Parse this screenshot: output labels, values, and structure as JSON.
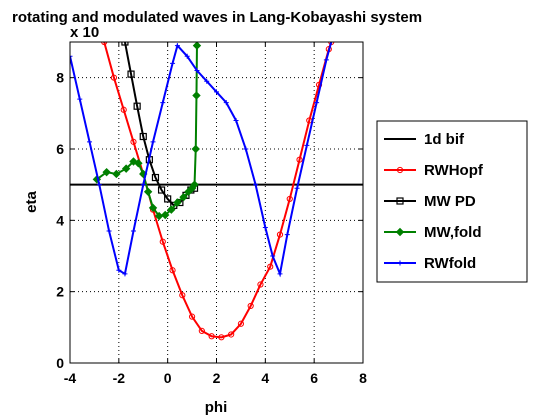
{
  "chart_data": {
    "type": "line",
    "title": "rotating and modulated waves in Lang-Kobayashi system",
    "exponent_label": "x 10",
    "xlabel": "phi",
    "ylabel": "eta",
    "xlim": [
      -4,
      8
    ],
    "ylim": [
      0,
      9
    ],
    "xticks": [
      -4,
      -2,
      0,
      2,
      4,
      6,
      8
    ],
    "yticks": [
      0,
      2,
      4,
      6,
      8
    ],
    "grid": true,
    "legend_position": "right-outside",
    "series": [
      {
        "name": "1d bif",
        "color": "#000000",
        "marker": "none",
        "points": [
          [
            -4,
            5.0
          ],
          [
            8,
            5.0
          ]
        ]
      },
      {
        "name": "RWHopf",
        "color": "#ff0000",
        "marker": "circle",
        "points": [
          [
            -2.6,
            9.0
          ],
          [
            -2.2,
            8.0
          ],
          [
            -1.8,
            7.1
          ],
          [
            -1.4,
            6.2
          ],
          [
            -1.0,
            5.3
          ],
          [
            -0.6,
            4.3
          ],
          [
            -0.2,
            3.4
          ],
          [
            0.2,
            2.6
          ],
          [
            0.6,
            1.9
          ],
          [
            1.0,
            1.3
          ],
          [
            1.4,
            0.9
          ],
          [
            1.8,
            0.75
          ],
          [
            2.2,
            0.72
          ],
          [
            2.6,
            0.8
          ],
          [
            3.0,
            1.1
          ],
          [
            3.4,
            1.6
          ],
          [
            3.8,
            2.2
          ],
          [
            4.2,
            2.7
          ],
          [
            4.6,
            3.6
          ],
          [
            5.0,
            4.6
          ],
          [
            5.4,
            5.7
          ],
          [
            5.8,
            6.8
          ],
          [
            6.2,
            7.8
          ],
          [
            6.6,
            8.8
          ],
          [
            6.7,
            9.0
          ]
        ]
      },
      {
        "name": "MW PD",
        "color": "#000000",
        "marker": "square",
        "points": [
          [
            -1.75,
            9.0
          ],
          [
            -1.5,
            8.1
          ],
          [
            -1.25,
            7.2
          ],
          [
            -1.0,
            6.35
          ],
          [
            -0.75,
            5.7
          ],
          [
            -0.5,
            5.2
          ],
          [
            -0.25,
            4.85
          ],
          [
            0.0,
            4.6
          ],
          [
            0.25,
            4.42
          ],
          [
            0.5,
            4.5
          ],
          [
            0.75,
            4.7
          ],
          [
            0.95,
            4.85
          ],
          [
            1.1,
            4.9
          ]
        ]
      },
      {
        "name": "MW,fold",
        "color": "#008000",
        "marker": "diamond",
        "points": [
          [
            -2.9,
            5.15
          ],
          [
            -2.5,
            5.35
          ],
          [
            -2.1,
            5.3
          ],
          [
            -1.7,
            5.45
          ],
          [
            -1.4,
            5.65
          ],
          [
            -1.2,
            5.6
          ],
          [
            -1.0,
            5.3
          ],
          [
            -0.8,
            4.8
          ],
          [
            -0.6,
            4.35
          ],
          [
            -0.35,
            4.12
          ],
          [
            -0.1,
            4.15
          ],
          [
            0.15,
            4.3
          ],
          [
            0.4,
            4.5
          ],
          [
            0.65,
            4.65
          ],
          [
            0.85,
            4.8
          ],
          [
            1.0,
            4.9
          ],
          [
            1.1,
            5.0
          ],
          [
            1.15,
            6.0
          ],
          [
            1.18,
            7.5
          ],
          [
            1.2,
            8.9
          ]
        ]
      },
      {
        "name": "RWfold",
        "color": "#0000ff",
        "marker": "plus",
        "points": [
          [
            -4.0,
            8.6
          ],
          [
            -3.6,
            7.4
          ],
          [
            -3.2,
            6.2
          ],
          [
            -2.8,
            5.0
          ],
          [
            -2.4,
            3.7
          ],
          [
            -2.0,
            2.6
          ],
          [
            -1.75,
            2.5
          ],
          [
            -1.4,
            3.7
          ],
          [
            -1.0,
            5.0
          ],
          [
            -0.6,
            6.2
          ],
          [
            -0.2,
            7.3
          ],
          [
            0.2,
            8.4
          ],
          [
            0.4,
            8.9
          ],
          [
            0.8,
            8.6
          ],
          [
            1.2,
            8.2
          ],
          [
            1.6,
            7.9
          ],
          [
            2.0,
            7.6
          ],
          [
            2.4,
            7.3
          ],
          [
            2.8,
            6.8
          ],
          [
            3.2,
            6.0
          ],
          [
            3.6,
            5.0
          ],
          [
            4.0,
            3.8
          ],
          [
            4.3,
            3.0
          ],
          [
            4.6,
            2.5
          ],
          [
            4.9,
            3.6
          ],
          [
            5.3,
            4.9
          ],
          [
            5.7,
            6.1
          ],
          [
            6.1,
            7.3
          ],
          [
            6.5,
            8.5
          ],
          [
            6.7,
            9.0
          ]
        ]
      }
    ]
  }
}
